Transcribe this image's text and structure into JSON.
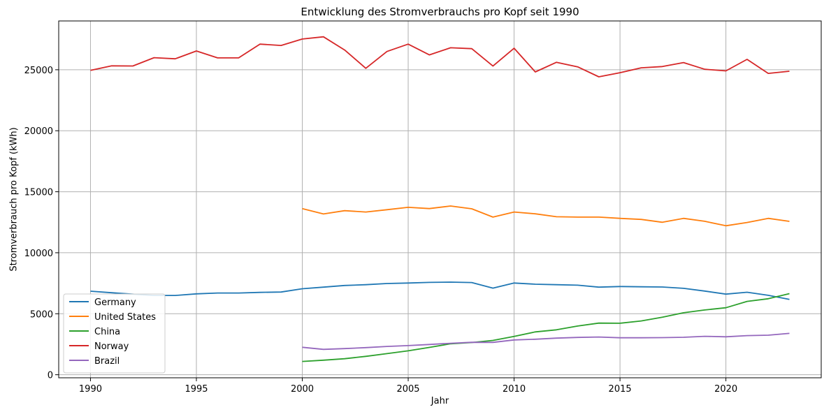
{
  "chart_data": {
    "type": "line",
    "title": "Entwicklung des Stromverbrauchs pro Kopf seit 1990",
    "xlabel": "Jahr",
    "ylabel": "Stromverbrauch pro Kopf (kWh)",
    "xlim": [
      1988.5,
      2024.5
    ],
    "ylim": [
      -250,
      29000
    ],
    "xticks": [
      1990,
      1995,
      2000,
      2005,
      2010,
      2015,
      2020
    ],
    "yticks": [
      0,
      5000,
      10000,
      15000,
      20000,
      25000
    ],
    "grid": true,
    "legend_position": "lower-left",
    "series": [
      {
        "name": "Germany",
        "color": "#1f77b4",
        "x": [
          1990,
          1991,
          1992,
          1993,
          1994,
          1995,
          1996,
          1997,
          1998,
          1999,
          2000,
          2001,
          2002,
          2003,
          2004,
          2005,
          2006,
          2007,
          2008,
          2009,
          2010,
          2011,
          2012,
          2013,
          2014,
          2015,
          2016,
          2017,
          2018,
          2019,
          2020,
          2021,
          2022,
          2023
        ],
        "values": [
          6850,
          6720,
          6600,
          6500,
          6500,
          6630,
          6700,
          6700,
          6750,
          6780,
          7050,
          7180,
          7320,
          7380,
          7480,
          7520,
          7570,
          7590,
          7560,
          7100,
          7520,
          7420,
          7380,
          7340,
          7180,
          7230,
          7210,
          7190,
          7080,
          6860,
          6610,
          6760,
          6510,
          6180
        ]
      },
      {
        "name": "United States",
        "color": "#ff7f0e",
        "x": [
          2000,
          2001,
          2002,
          2003,
          2004,
          2005,
          2006,
          2007,
          2008,
          2009,
          2010,
          2011,
          2012,
          2013,
          2014,
          2015,
          2016,
          2017,
          2018,
          2019,
          2020,
          2021,
          2022,
          2023
        ],
        "values": [
          13620,
          13180,
          13450,
          13340,
          13530,
          13720,
          13620,
          13830,
          13600,
          12920,
          13340,
          13190,
          12950,
          12920,
          12920,
          12820,
          12730,
          12500,
          12820,
          12580,
          12210,
          12480,
          12820,
          12570
        ]
      },
      {
        "name": "China",
        "color": "#2ca02c",
        "x": [
          2000,
          2001,
          2002,
          2003,
          2004,
          2005,
          2006,
          2007,
          2008,
          2009,
          2010,
          2011,
          2012,
          2013,
          2014,
          2015,
          2016,
          2017,
          2018,
          2019,
          2020,
          2021,
          2022,
          2023
        ],
        "values": [
          1090,
          1190,
          1310,
          1510,
          1730,
          1960,
          2240,
          2540,
          2640,
          2810,
          3140,
          3510,
          3680,
          3990,
          4230,
          4220,
          4410,
          4710,
          5080,
          5310,
          5490,
          6010,
          6230,
          6650
        ]
      },
      {
        "name": "Norway",
        "color": "#d62728",
        "x": [
          1990,
          1991,
          1992,
          1993,
          1994,
          1995,
          1996,
          1997,
          1998,
          1999,
          2000,
          2001,
          2002,
          2003,
          2004,
          2005,
          2006,
          2007,
          2008,
          2009,
          2010,
          2011,
          2012,
          2013,
          2014,
          2015,
          2016,
          2017,
          2018,
          2019,
          2020,
          2021,
          2022,
          2023
        ],
        "values": [
          24950,
          25320,
          25310,
          25990,
          25900,
          26540,
          25970,
          25980,
          27100,
          26990,
          27520,
          27700,
          26620,
          25120,
          26500,
          27100,
          26220,
          26800,
          26730,
          25300,
          26760,
          24820,
          25610,
          25240,
          24420,
          24760,
          25160,
          25260,
          25590,
          25040,
          24910,
          25850,
          24700,
          24880
        ]
      },
      {
        "name": "Brazil",
        "color": "#9467bd",
        "x": [
          2000,
          2001,
          2002,
          2003,
          2004,
          2005,
          2006,
          2007,
          2008,
          2009,
          2010,
          2011,
          2012,
          2013,
          2014,
          2015,
          2016,
          2017,
          2018,
          2019,
          2020,
          2021,
          2022,
          2023
        ],
        "values": [
          2250,
          2080,
          2140,
          2220,
          2320,
          2390,
          2480,
          2580,
          2660,
          2650,
          2850,
          2910,
          3000,
          3060,
          3090,
          3030,
          3030,
          3040,
          3070,
          3150,
          3110,
          3210,
          3240,
          3390
        ]
      }
    ]
  }
}
